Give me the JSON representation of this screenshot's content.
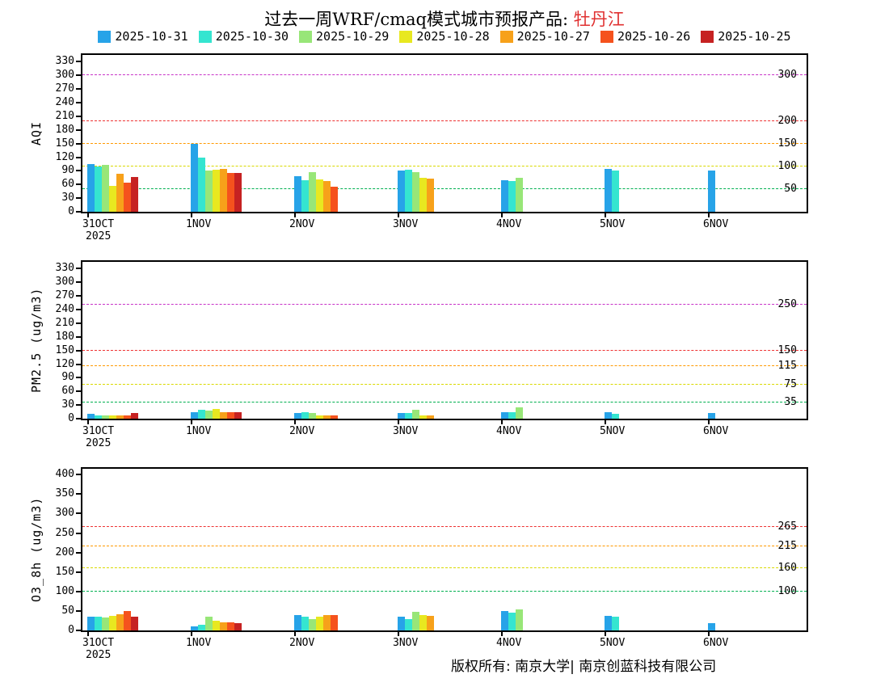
{
  "title": {
    "prefix": "过去一周WRF/cmaq模式城市预报产品: ",
    "city": "牡丹江"
  },
  "legend": [
    {
      "label": "2025-10-31",
      "color": "#27a3e8"
    },
    {
      "label": "2025-10-30",
      "color": "#35e5d0"
    },
    {
      "label": "2025-10-29",
      "color": "#98e678"
    },
    {
      "label": "2025-10-28",
      "color": "#e8e820"
    },
    {
      "label": "2025-10-27",
      "color": "#f7a11a"
    },
    {
      "label": "2025-10-26",
      "color": "#f5521d"
    },
    {
      "label": "2025-10-25",
      "color": "#c62222"
    }
  ],
  "footer": {
    "copyright": "版权所有: 南京大学| 南京创蓝科技有限公司"
  },
  "chart_data": [
    {
      "type": "bar",
      "title": "AQI forecast by model run",
      "ylabel": "AQI",
      "xlabel": "",
      "ylim": [
        0,
        345
      ],
      "yticks": [
        0,
        30,
        60,
        90,
        120,
        150,
        180,
        210,
        240,
        270,
        300,
        330
      ],
      "grid": false,
      "legend_position": "top",
      "categories": [
        "31OCT",
        "1NOV",
        "2NOV",
        "3NOV",
        "4NOV",
        "5NOV",
        "6NOV"
      ],
      "sub_label": {
        "index": 0,
        "text": "2025"
      },
      "ref_lines": [
        {
          "value": 50,
          "color": "#00b050",
          "label": "50"
        },
        {
          "value": 100,
          "color": "#d9d900",
          "label": "100"
        },
        {
          "value": 150,
          "color": "#ff9900",
          "label": "150"
        },
        {
          "value": 200,
          "color": "#ee3333",
          "label": "200"
        },
        {
          "value": 300,
          "color": "#c833c8",
          "label": "300"
        }
      ],
      "series": [
        {
          "name": "2025-10-31",
          "values": [
            105,
            150,
            78,
            90,
            70,
            95,
            90
          ]
        },
        {
          "name": "2025-10-30",
          "values": [
            100,
            120,
            70,
            92,
            68,
            90,
            null
          ]
        },
        {
          "name": "2025-10-29",
          "values": [
            103,
            90,
            87,
            88,
            75,
            null,
            null
          ]
        },
        {
          "name": "2025-10-28",
          "values": [
            57,
            92,
            72,
            75,
            null,
            null,
            null
          ]
        },
        {
          "name": "2025-10-27",
          "values": [
            84,
            95,
            68,
            73,
            null,
            null,
            null
          ]
        },
        {
          "name": "2025-10-26",
          "values": [
            64,
            85,
            55,
            null,
            null,
            null,
            null
          ]
        },
        {
          "name": "2025-10-25",
          "values": [
            77,
            85,
            null,
            null,
            null,
            null,
            null
          ]
        }
      ]
    },
    {
      "type": "bar",
      "title": "PM2.5 forecast by model run",
      "ylabel": "PM2.5 (ug/m3)",
      "xlabel": "",
      "ylim": [
        0,
        345
      ],
      "yticks": [
        0,
        30,
        60,
        90,
        120,
        150,
        180,
        210,
        240,
        270,
        300,
        330
      ],
      "grid": false,
      "legend_position": "top",
      "categories": [
        "31OCT",
        "1NOV",
        "2NOV",
        "3NOV",
        "4NOV",
        "5NOV",
        "6NOV"
      ],
      "sub_label": {
        "index": 0,
        "text": "2025"
      },
      "ref_lines": [
        {
          "value": 35,
          "color": "#00b050",
          "label": "35"
        },
        {
          "value": 75,
          "color": "#d9d900",
          "label": "75"
        },
        {
          "value": 115,
          "color": "#ff9900",
          "label": "115"
        },
        {
          "value": 150,
          "color": "#ee3333",
          "label": "150"
        },
        {
          "value": 250,
          "color": "#c833c8",
          "label": "250"
        }
      ],
      "series": [
        {
          "name": "2025-10-31",
          "values": [
            10,
            15,
            13,
            13,
            15,
            15,
            12
          ]
        },
        {
          "name": "2025-10-30",
          "values": [
            8,
            20,
            14,
            12,
            15,
            10,
            null
          ]
        },
        {
          "name": "2025-10-29",
          "values": [
            8,
            18,
            13,
            20,
            25,
            null,
            null
          ]
        },
        {
          "name": "2025-10-28",
          "values": [
            7,
            22,
            8,
            8,
            null,
            null,
            null
          ]
        },
        {
          "name": "2025-10-27",
          "values": [
            8,
            15,
            8,
            7,
            null,
            null,
            null
          ]
        },
        {
          "name": "2025-10-26",
          "values": [
            8,
            15,
            7,
            null,
            null,
            null,
            null
          ]
        },
        {
          "name": "2025-10-25",
          "values": [
            12,
            14,
            null,
            null,
            null,
            null,
            null
          ]
        }
      ]
    },
    {
      "type": "bar",
      "title": "O3_8h forecast by model run",
      "ylabel": "O3_8h (ug/m3)",
      "xlabel": "",
      "ylim": [
        0,
        415
      ],
      "yticks": [
        0,
        50,
        100,
        150,
        200,
        250,
        300,
        350,
        400
      ],
      "grid": false,
      "legend_position": "top",
      "categories": [
        "31OCT",
        "1NOV",
        "2NOV",
        "3NOV",
        "4NOV",
        "5NOV",
        "6NOV"
      ],
      "sub_label": {
        "index": 0,
        "text": "2025"
      },
      "ref_lines": [
        {
          "value": 100,
          "color": "#00b050",
          "label": "100"
        },
        {
          "value": 160,
          "color": "#d9d900",
          "label": "160"
        },
        {
          "value": 215,
          "color": "#ff9900",
          "label": "215"
        },
        {
          "value": 265,
          "color": "#ee3333",
          "label": "265"
        }
      ],
      "series": [
        {
          "name": "2025-10-31",
          "values": [
            35,
            10,
            40,
            35,
            50,
            38,
            18
          ]
        },
        {
          "name": "2025-10-30",
          "values": [
            35,
            15,
            35,
            30,
            45,
            35,
            null
          ]
        },
        {
          "name": "2025-10-29",
          "values": [
            33,
            35,
            30,
            48,
            55,
            null,
            null
          ]
        },
        {
          "name": "2025-10-28",
          "values": [
            38,
            25,
            35,
            40,
            null,
            null,
            null
          ]
        },
        {
          "name": "2025-10-27",
          "values": [
            42,
            20,
            40,
            38,
            null,
            null,
            null
          ]
        },
        {
          "name": "2025-10-26",
          "values": [
            50,
            20,
            40,
            null,
            null,
            null,
            null
          ]
        },
        {
          "name": "2025-10-25",
          "values": [
            35,
            18,
            null,
            null,
            null,
            null,
            null
          ]
        }
      ]
    }
  ]
}
